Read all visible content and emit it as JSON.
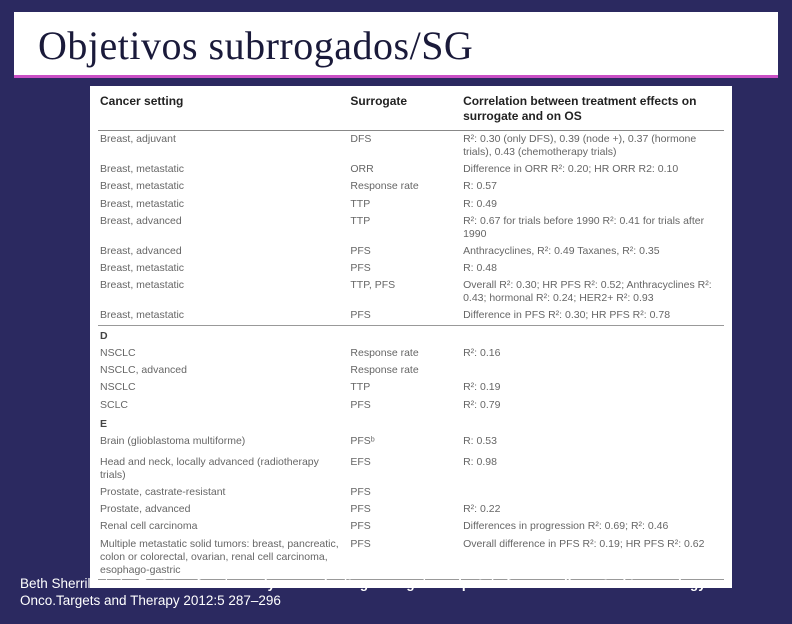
{
  "title": "Objetivos subrrogados/SG",
  "headers": {
    "setting": "Cancer setting",
    "surrogate": "Surrogate",
    "correlation": "Correlation between treatment effects on surrogate and on OS"
  },
  "rows": [
    {
      "setting": "Breast, adjuvant",
      "surrogate": "DFS",
      "corr": "R²: 0.30 (only DFS), 0.39 (node +), 0.37 (hormone trials), 0.43 (chemotherapy trials)"
    },
    {
      "setting": "Breast, metastatic",
      "surrogate": "ORR",
      "corr": "Difference in ORR R²: 0.20; HR ORR R2: 0.10"
    },
    {
      "setting": "Breast, metastatic",
      "surrogate": "Response rate",
      "corr": "R: 0.57"
    },
    {
      "setting": "Breast, metastatic",
      "surrogate": "TTP",
      "corr": "R: 0.49"
    },
    {
      "setting": "Breast, advanced",
      "surrogate": "TTP",
      "corr": "R²: 0.67 for trials before 1990  R²: 0.41 for trials after 1990"
    },
    {
      "setting": "Breast, advanced",
      "surrogate": "PFS",
      "corr": "Anthracyclines, R²: 0.49  Taxanes, R²: 0.35"
    },
    {
      "setting": "Breast, metastatic",
      "surrogate": "PFS",
      "corr": "R: 0.48"
    },
    {
      "setting": "Breast, metastatic",
      "surrogate": "TTP, PFS",
      "corr": "Overall R²: 0.30; HR PFS R²: 0.52; Anthracyclines R²: 0.43; hormonal R²: 0.24; HER2+ R²: 0.93"
    },
    {
      "setting": "Breast, metastatic",
      "surrogate": "PFS",
      "corr": "Difference in PFS R²: 0.30; HR PFS R²: 0.78"
    }
  ],
  "sectionD": "D",
  "rowsD": [
    {
      "setting": "NSCLC",
      "surrogate": "Response rate",
      "corr": "R²: 0.16"
    },
    {
      "setting": "NSCLC, advanced",
      "surrogate": "Response rate",
      "corr": ""
    },
    {
      "setting": "NSCLC",
      "surrogate": "TTP",
      "corr": "R²: 0.19"
    },
    {
      "setting": "SCLC",
      "surrogate": "PFS",
      "corr": "R²: 0.79"
    }
  ],
  "sectionE": "E",
  "rowsE": [
    {
      "setting": "Brain (glioblastoma multiforme)",
      "surrogate": "PFSᵇ",
      "corr": "R: 0.53"
    },
    {
      "setting": "",
      "surrogate": "",
      "corr": ""
    },
    {
      "setting": "Head and neck, locally advanced (radiotherapy trials)",
      "surrogate": "EFS",
      "corr": "R: 0.98"
    },
    {
      "setting": "Prostate, castrate-resistant",
      "surrogate": "PFS",
      "corr": ""
    },
    {
      "setting": "Prostate, advanced",
      "surrogate": "PFS",
      "corr": "R²: 0.22"
    },
    {
      "setting": "Renal cell carcinoma",
      "surrogate": "PFS",
      "corr": "Differences in progression R²: 0.69; R²: 0.46"
    },
    {
      "setting": "Multiple metastatic solid tumors: breast, pancreatic, colon or colorectal, ovarian, renal cell carcinoma, esophago-gastric",
      "surrogate": "PFS",
      "corr": "Overall difference in PFS R²: 0.19; HR PFS R²: 0.62"
    }
  ],
  "citation": {
    "authors": "Beth Sherrill et al. . ",
    "title_bold": "Review of meta-analyses evaluating surrogate endpoints for overall survival in oncology",
    "journal": "Onco.Targets and Therapy 2012:5 287–296"
  }
}
